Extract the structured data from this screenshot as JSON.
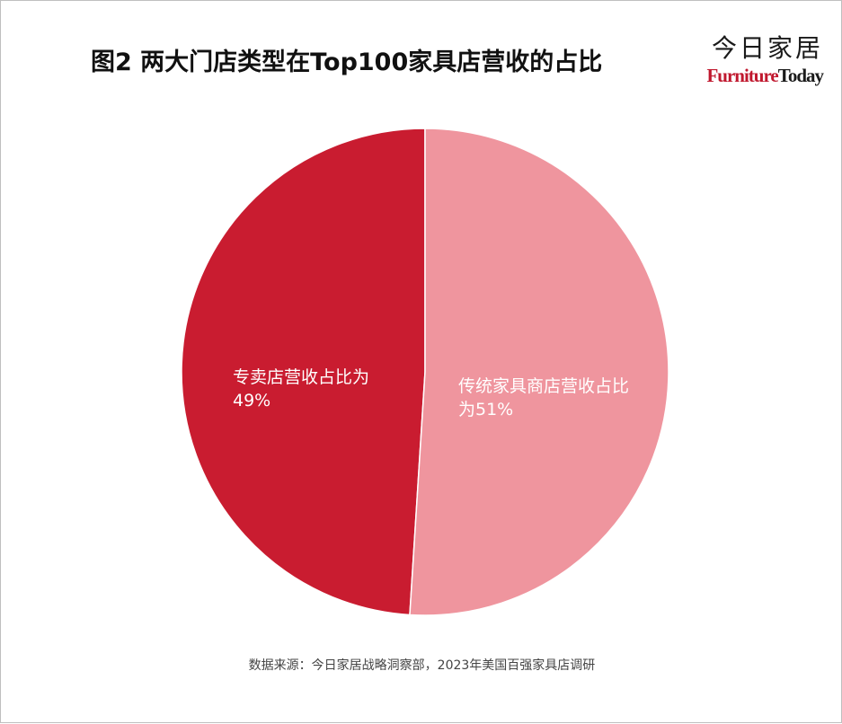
{
  "title": "图2 两大门店类型在Top100家具店营收的占比",
  "logo": {
    "cn": "今日家居",
    "en_part1": "Furniture",
    "en_part2": "Today"
  },
  "source": "数据来源：今日家居战略洞察部，2023年美国百强家具店调研",
  "chart_data": {
    "type": "pie",
    "slices": [
      {
        "label_line1": "专卖店营收占比为",
        "label_line2": "49%",
        "value": 49,
        "color": "#c91c30"
      },
      {
        "label_line1": "传统家具商店营收占比",
        "label_line2": "为51%",
        "value": 51,
        "color": "#ef959e"
      }
    ]
  }
}
